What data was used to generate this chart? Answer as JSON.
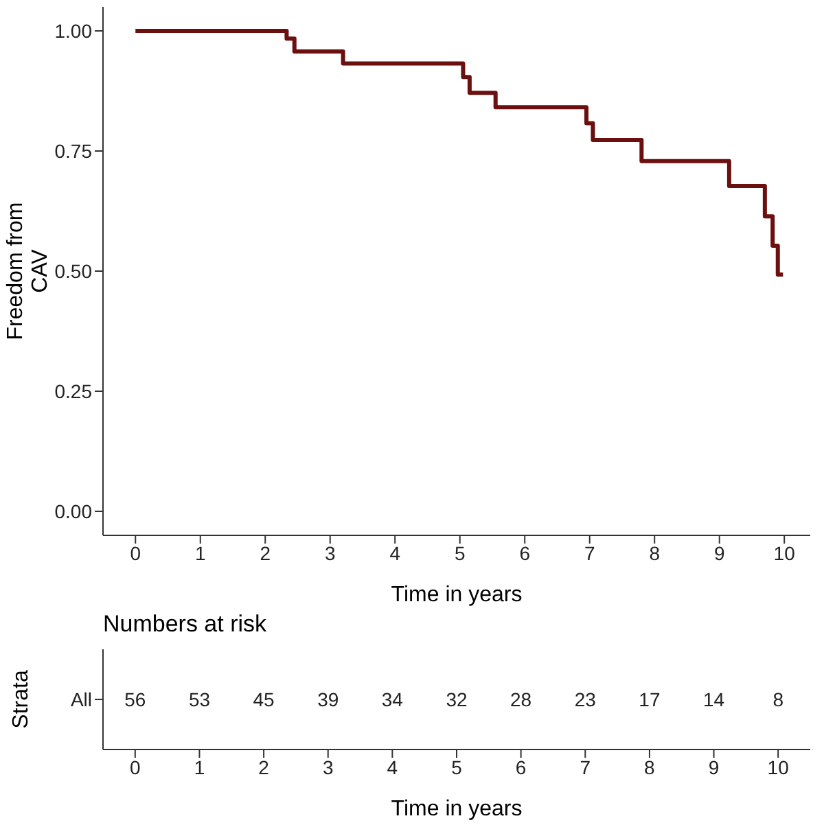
{
  "chart_data": [
    {
      "type": "step",
      "xlabel": "Time in years",
      "ylabel": "Freedom from CAV",
      "series": [
        {
          "color": "#6b0f0f",
          "x": [
            0,
            2.33,
            2.45,
            3.2,
            5.05,
            5.15,
            5.55,
            6.95,
            7.05,
            7.8,
            9.15,
            9.7,
            9.82,
            9.9,
            9.98
          ],
          "values": [
            1.0,
            0.984,
            0.957,
            0.932,
            0.904,
            0.871,
            0.841,
            0.808,
            0.773,
            0.729,
            0.677,
            0.614,
            0.553,
            0.493,
            0.493
          ]
        }
      ],
      "xlim": [
        -0.5,
        10.4
      ],
      "xticks": [
        0,
        1,
        2,
        3,
        4,
        5,
        6,
        7,
        8,
        9,
        10
      ],
      "ylim": [
        -0.05,
        1.05
      ],
      "yticks": [
        {
          "value": 0,
          "label": "0.00"
        },
        {
          "value": 0.25,
          "label": "0.25"
        },
        {
          "value": 0.5,
          "label": "0.50"
        },
        {
          "value": 0.75,
          "label": "0.75"
        },
        {
          "value": 1,
          "label": "1.00"
        }
      ],
      "grid": false,
      "legend": false
    },
    {
      "type": "heatmap",
      "title": "Numbers at risk",
      "xlabel": "Time in years",
      "ylabel": "Strata",
      "categories": [
        "0",
        "1",
        "2",
        "3",
        "4",
        "5",
        "6",
        "7",
        "8",
        "9",
        "10"
      ],
      "y_categories": [
        "All"
      ],
      "cells": [
        [
          56,
          53,
          45,
          39,
          34,
          32,
          28,
          23,
          17,
          14,
          8
        ]
      ],
      "data_labels": true
    }
  ]
}
